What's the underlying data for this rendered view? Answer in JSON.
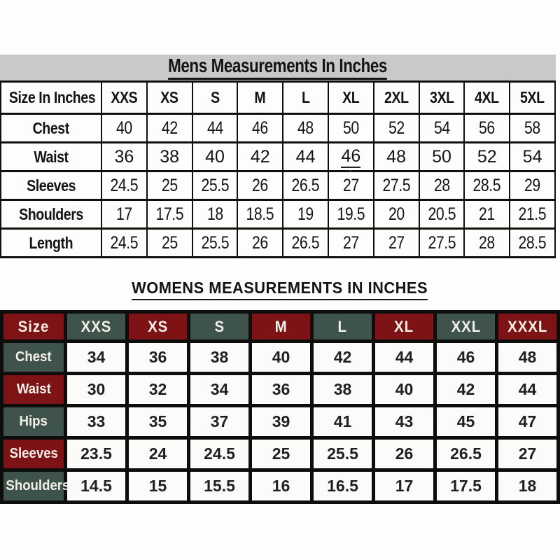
{
  "mens_table": {
    "title": "Mens Measurements In Inches",
    "strip_color": "#c9c9c9",
    "header": [
      "Size In Inches",
      "XXS",
      "XS",
      "S",
      "M",
      "L",
      "XL",
      "2XL",
      "3XL",
      "4XL",
      "5XL"
    ],
    "rows": [
      {
        "label": "Chest",
        "values": [
          "40",
          "42",
          "44",
          "46",
          "48",
          "50",
          "52",
          "54",
          "56",
          "58"
        ]
      },
      {
        "label": "Waist",
        "values": [
          "36",
          "38",
          "40",
          "42",
          "44",
          "46",
          "48",
          "50",
          "52",
          "54"
        ]
      },
      {
        "label": "Sleeves",
        "values": [
          "24.5",
          "25",
          "25.5",
          "26",
          "26.5",
          "27",
          "27.5",
          "28",
          "28.5",
          "29"
        ]
      },
      {
        "label": "Shoulders",
        "values": [
          "17",
          "17.5",
          "18",
          "18.5",
          "19",
          "19.5",
          "20",
          "20.5",
          "21",
          "21.5"
        ]
      },
      {
        "label": "Length",
        "values": [
          "24.5",
          "25",
          "25.5",
          "26",
          "26.5",
          "27",
          "27",
          "27.5",
          "28",
          "28.5"
        ]
      }
    ],
    "underlined_cell": {
      "row_index": 1,
      "col_index": 5
    }
  },
  "womens_table": {
    "title": "WOMENS MEASUREMENTS IN INCHES",
    "header": [
      "Size",
      "XXS",
      "XS",
      "S",
      "M",
      "L",
      "XL",
      "XXL",
      "XXXL"
    ],
    "rows": [
      {
        "label": "Chest",
        "values": [
          "34",
          "36",
          "38",
          "40",
          "42",
          "44",
          "46",
          "48"
        ]
      },
      {
        "label": "Waist",
        "values": [
          "30",
          "32",
          "34",
          "36",
          "38",
          "40",
          "42",
          "44"
        ]
      },
      {
        "label": "Hips",
        "values": [
          "33",
          "35",
          "37",
          "39",
          "41",
          "43",
          "45",
          "47"
        ]
      },
      {
        "label": "Sleeves",
        "values": [
          "23.5",
          "24",
          "24.5",
          "25",
          "25.5",
          "26",
          "26.5",
          "27"
        ]
      },
      {
        "label": "Shoulders",
        "values": [
          "14.5",
          "15",
          "15.5",
          "16",
          "16.5",
          "17",
          "17.5",
          "18"
        ]
      }
    ],
    "colors": {
      "maroon": "#7d1315",
      "teal": "#3e534c",
      "grid": "#0d0d0d",
      "header_text": "#f3efe9",
      "cell_bg": "#fbfbfa"
    }
  },
  "chart_data": [
    {
      "type": "table",
      "title": "Mens Measurements In Inches",
      "columns": [
        "Size In Inches",
        "XXS",
        "XS",
        "S",
        "M",
        "L",
        "XL",
        "2XL",
        "3XL",
        "4XL",
        "5XL"
      ],
      "rows": [
        [
          "Chest",
          40,
          42,
          44,
          46,
          48,
          50,
          52,
          54,
          56,
          58
        ],
        [
          "Waist",
          36,
          38,
          40,
          42,
          44,
          46,
          48,
          50,
          52,
          54
        ],
        [
          "Sleeves",
          24.5,
          25,
          25.5,
          26,
          26.5,
          27,
          27.5,
          28,
          28.5,
          29
        ],
        [
          "Shoulders",
          17,
          17.5,
          18,
          18.5,
          19,
          19.5,
          20,
          20.5,
          21,
          21.5
        ],
        [
          "Length",
          24.5,
          25,
          25.5,
          26,
          26.5,
          27,
          27,
          27.5,
          28,
          28.5
        ]
      ]
    },
    {
      "type": "table",
      "title": "WOMENS MEASUREMENTS IN INCHES",
      "columns": [
        "Size",
        "XXS",
        "XS",
        "S",
        "M",
        "L",
        "XL",
        "XXL",
        "XXXL"
      ],
      "rows": [
        [
          "Chest",
          34,
          36,
          38,
          40,
          42,
          44,
          46,
          48
        ],
        [
          "Waist",
          30,
          32,
          34,
          36,
          38,
          40,
          42,
          44
        ],
        [
          "Hips",
          33,
          35,
          37,
          39,
          41,
          43,
          45,
          47
        ],
        [
          "Sleeves",
          23.5,
          24,
          24.5,
          25,
          25.5,
          26,
          26.5,
          27
        ],
        [
          "Shoulders",
          14.5,
          15,
          15.5,
          16,
          16.5,
          17,
          17.5,
          18
        ]
      ]
    }
  ]
}
